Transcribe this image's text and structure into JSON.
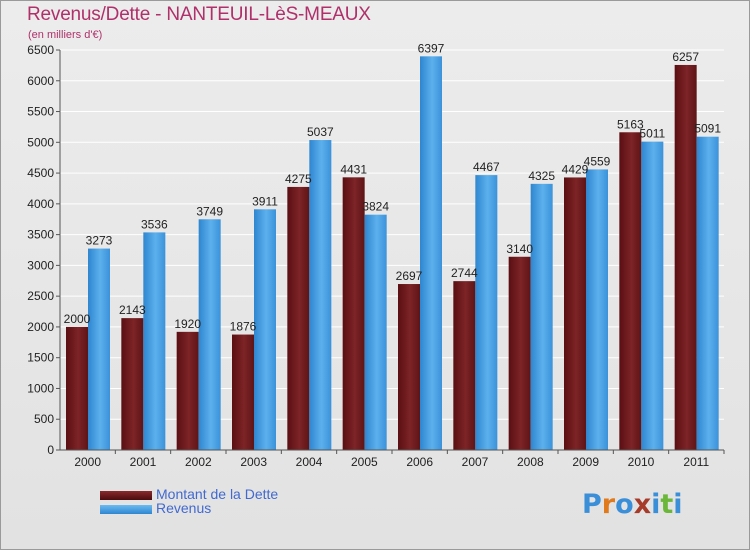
{
  "page": {
    "title": "Revenus/Dette - NANTEUIL-LèS-MEAUX",
    "subtitle": "(en milliers d'€)"
  },
  "colors": {
    "dette": "#6e1a1d",
    "revenus": "#4aa0e0",
    "title": "#b0306a",
    "legend_text": "#4169d0"
  },
  "legend": {
    "items": [
      {
        "label": "Montant de la Dette",
        "color": "#6e1a1d"
      },
      {
        "label": "Revenus",
        "color": "#4aa0e0"
      }
    ]
  },
  "logo": {
    "text": "Proxiti",
    "letter_colors": [
      "#3a8fd8",
      "#e07a1c",
      "#3a8fd8",
      "#a63b2a",
      "#3a8fd8",
      "#6bb73a",
      "#3a8fd8"
    ]
  },
  "chart_data": {
    "type": "bar",
    "categories": [
      "2000",
      "2001",
      "2002",
      "2003",
      "2004",
      "2005",
      "2006",
      "2007",
      "2008",
      "2009",
      "2010",
      "2011"
    ],
    "series": [
      {
        "name": "Montant de la Dette",
        "values": [
          2000,
          2143,
          1920,
          1876,
          4275,
          4431,
          2697,
          2744,
          3140,
          4429,
          5163,
          6257
        ]
      },
      {
        "name": "Revenus",
        "values": [
          3273,
          3536,
          3749,
          3911,
          5037,
          3824,
          6397,
          4467,
          4325,
          4559,
          5011,
          5091
        ]
      }
    ],
    "ylim": [
      0,
      6500
    ],
    "yticks": [
      0,
      500,
      1000,
      1500,
      2000,
      2500,
      3000,
      3500,
      4000,
      4500,
      5000,
      5500,
      6000,
      6500
    ],
    "grid": true,
    "legend_position": "bottom-left"
  }
}
